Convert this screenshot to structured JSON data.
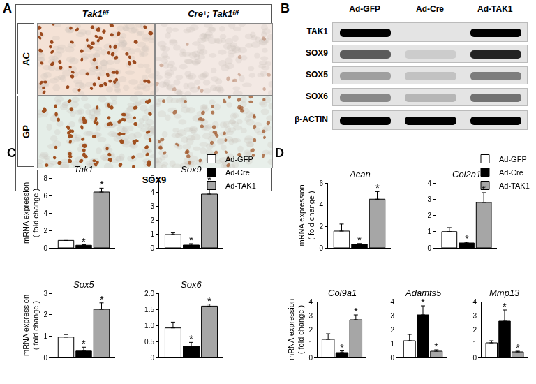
{
  "panel_A": {
    "label": "A",
    "columns": [
      [
        {
          "text": "Tak1"
        },
        {
          "text": "f/f",
          "sup": true
        }
      ],
      [
        {
          "text": "Cre"
        },
        {
          "text": "+",
          "sup": true
        },
        {
          "text": "; Tak1"
        },
        {
          "text": "f/f",
          "sup": true
        }
      ]
    ],
    "rows": [
      "AC",
      "GP"
    ],
    "footer": "SOX9"
  },
  "panel_B": {
    "label": "B",
    "lanes": [
      "Ad-GFP",
      "Ad-Cre",
      "Ad-TAK1"
    ],
    "rows": [
      {
        "label": "TAK1",
        "intensity": [
          1.0,
          0.0,
          1.0
        ]
      },
      {
        "label": "SOX9",
        "intensity": [
          0.6,
          0.1,
          0.85
        ]
      },
      {
        "label": "SOX5",
        "intensity": [
          0.3,
          0.15,
          0.45
        ]
      },
      {
        "label": "SOX6",
        "intensity": [
          0.4,
          0.2,
          0.5
        ]
      },
      {
        "label": "β-ACTIN",
        "intensity": [
          1.0,
          1.0,
          1.0
        ]
      }
    ]
  },
  "chart_data": [
    {
      "panel": "C",
      "type": "bar",
      "title": "Tak1",
      "ylabel": [
        "mRNA expression",
        "( fold change )"
      ],
      "categories": [
        null
      ],
      "tick_labels": "y",
      "ylim": [
        0,
        8
      ],
      "yticks": [
        0,
        2,
        4,
        6,
        8
      ],
      "series": [
        {
          "name": "Ad-GFP",
          "color": "#ffffff",
          "values": [
            0.85
          ],
          "errors": [
            0.15
          ]
        },
        {
          "name": "Ad-Cre",
          "color": "#000000",
          "values": [
            0.3
          ],
          "errors": [
            0.05
          ]
        },
        {
          "name": "Ad-TAK1",
          "color": "#a6a6a6",
          "values": [
            6.4
          ],
          "errors": [
            0.45
          ]
        }
      ],
      "annotations": [
        {
          "text": "*",
          "series": "Ad-Cre"
        },
        {
          "text": "*",
          "series": "Ad-TAK1"
        }
      ]
    },
    {
      "panel": "C",
      "type": "bar",
      "title": "Sox9",
      "categories": [
        null
      ],
      "tick_labels": "y",
      "legend": "upper right",
      "ylim": [
        0,
        5
      ],
      "yticks": [
        0,
        1,
        2,
        3,
        4,
        5
      ],
      "series": [
        {
          "name": "Ad-GFP",
          "color": "#ffffff",
          "values": [
            0.95
          ],
          "errors": [
            0.12
          ]
        },
        {
          "name": "Ad-Cre",
          "color": "#000000",
          "values": [
            0.2
          ],
          "errors": [
            0.1
          ]
        },
        {
          "name": "Ad-TAK1",
          "color": "#a6a6a6",
          "values": [
            3.85
          ],
          "errors": [
            0.75
          ]
        }
      ],
      "annotations": [
        {
          "text": "*",
          "series": "Ad-Cre"
        },
        {
          "text": "*",
          "series": "Ad-TAK1"
        }
      ]
    },
    {
      "panel": "C",
      "type": "bar",
      "title": "Sox5",
      "ylabel": [
        "mRNA expression",
        "( fold change )"
      ],
      "categories": [
        null
      ],
      "tick_labels": "y",
      "ylim": [
        0,
        3
      ],
      "yticks": [
        0,
        1,
        2,
        3
      ],
      "series": [
        {
          "name": "Ad-GFP",
          "color": "#ffffff",
          "values": [
            0.95
          ],
          "errors": [
            0.12
          ]
        },
        {
          "name": "Ad-Cre",
          "color": "#000000",
          "values": [
            0.3
          ],
          "errors": [
            0.18
          ]
        },
        {
          "name": "Ad-TAK1",
          "color": "#a6a6a6",
          "values": [
            2.25
          ],
          "errors": [
            0.3
          ]
        }
      ],
      "annotations": [
        {
          "text": "*",
          "series": "Ad-Cre"
        },
        {
          "text": "*",
          "series": "Ad-TAK1"
        }
      ]
    },
    {
      "panel": "C",
      "type": "bar",
      "title": "Sox6",
      "categories": [
        null
      ],
      "tick_labels": "y",
      "ylim": [
        0,
        2
      ],
      "yticks": [
        0,
        0.5,
        {
          "value": 1,
          "label": "1.0"
        },
        1.5,
        {
          "value": 2,
          "label": "2.0"
        }
      ],
      "series": [
        {
          "name": "Ad-GFP",
          "color": "#ffffff",
          "values": [
            0.92
          ],
          "errors": [
            0.18
          ]
        },
        {
          "name": "Ad-Cre",
          "color": "#000000",
          "values": [
            0.35
          ],
          "errors": [
            0.12
          ]
        },
        {
          "name": "Ad-TAK1",
          "color": "#a6a6a6",
          "values": [
            1.6
          ],
          "errors": [
            0.06
          ]
        }
      ],
      "annotations": [
        {
          "text": "*",
          "series": "Ad-Cre"
        },
        {
          "text": "*",
          "series": "Ad-TAK1"
        }
      ]
    },
    {
      "panel": "D",
      "type": "bar",
      "title": "Acan",
      "ylabel": [
        "mRNA expression",
        "( fold change )"
      ],
      "categories": [
        null
      ],
      "tick_labels": "y",
      "ylim": [
        0,
        6
      ],
      "yticks": [
        0,
        2,
        4,
        6
      ],
      "series": [
        {
          "name": "Ad-GFP",
          "color": "#ffffff",
          "values": [
            1.55
          ],
          "errors": [
            0.65
          ]
        },
        {
          "name": "Ad-Cre",
          "color": "#000000",
          "values": [
            0.35
          ],
          "errors": [
            0.05
          ]
        },
        {
          "name": "Ad-TAK1",
          "color": "#a6a6a6",
          "values": [
            4.5
          ],
          "errors": [
            0.7
          ]
        }
      ],
      "annotations": [
        {
          "text": "*",
          "series": "Ad-Cre"
        },
        {
          "text": "*",
          "series": "Ad-TAK1"
        }
      ]
    },
    {
      "panel": "D",
      "type": "bar",
      "title": "Col2a1",
      "categories": [
        null
      ],
      "tick_labels": "y",
      "legend": "upper right",
      "ylim": [
        0,
        4
      ],
      "yticks": [
        0,
        1,
        2,
        3,
        4
      ],
      "series": [
        {
          "name": "Ad-GFP",
          "color": "#ffffff",
          "values": [
            1.0
          ],
          "errors": [
            0.25
          ]
        },
        {
          "name": "Ad-Cre",
          "color": "#000000",
          "values": [
            0.3
          ],
          "errors": [
            0.05
          ]
        },
        {
          "name": "Ad-TAK1",
          "color": "#a6a6a6",
          "values": [
            2.8
          ],
          "errors": [
            0.6
          ]
        }
      ],
      "annotations": [
        {
          "text": "*",
          "series": "Ad-Cre"
        },
        {
          "text": "*",
          "series": "Ad-TAK1"
        }
      ]
    },
    {
      "panel": "D",
      "type": "bar",
      "title": "Col9a1",
      "ylabel": [
        "mRNA expression",
        "( fold change )"
      ],
      "categories": [
        null
      ],
      "tick_labels": "y",
      "ylim": [
        0,
        4
      ],
      "yticks": [
        0,
        1,
        2,
        3,
        4
      ],
      "series": [
        {
          "name": "Ad-GFP",
          "color": "#ffffff",
          "values": [
            1.3
          ],
          "errors": [
            0.4
          ]
        },
        {
          "name": "Ad-Cre",
          "color": "#000000",
          "values": [
            0.35
          ],
          "errors": [
            0.12
          ]
        },
        {
          "name": "Ad-TAK1",
          "color": "#a6a6a6",
          "values": [
            2.7
          ],
          "errors": [
            0.35
          ]
        }
      ],
      "annotations": [
        {
          "text": "*",
          "series": "Ad-Cre"
        },
        {
          "text": "*",
          "series": "Ad-TAK1"
        }
      ]
    },
    {
      "panel": "D",
      "type": "bar",
      "title": "Adamts5",
      "categories": [
        null
      ],
      "tick_labels": "y",
      "ylim": [
        0,
        4
      ],
      "yticks": [
        0,
        1,
        2,
        3,
        4
      ],
      "series": [
        {
          "name": "Ad-GFP",
          "color": "#ffffff",
          "values": [
            1.2
          ],
          "errors": [
            0.45
          ]
        },
        {
          "name": "Ad-Cre",
          "color": "#000000",
          "values": [
            3.05
          ],
          "errors": [
            0.65
          ]
        },
        {
          "name": "Ad-TAK1",
          "color": "#a6a6a6",
          "values": [
            0.45
          ],
          "errors": [
            0.1
          ]
        }
      ],
      "annotations": [
        {
          "text": "*",
          "series": "Ad-Cre"
        },
        {
          "text": "*",
          "series": "Ad-TAK1"
        }
      ]
    },
    {
      "panel": "D",
      "type": "bar",
      "title": "Mmp13",
      "categories": [
        null
      ],
      "tick_labels": "y",
      "ylim": [
        0,
        4
      ],
      "yticks": [
        0,
        1,
        2,
        3,
        4
      ],
      "series": [
        {
          "name": "Ad-GFP",
          "color": "#ffffff",
          "values": [
            1.05
          ],
          "errors": [
            0.15
          ]
        },
        {
          "name": "Ad-Cre",
          "color": "#000000",
          "values": [
            2.6
          ],
          "errors": [
            0.8
          ]
        },
        {
          "name": "Ad-TAK1",
          "color": "#a6a6a6",
          "values": [
            0.4
          ],
          "errors": [
            0.05
          ]
        }
      ],
      "annotations": [
        {
          "text": "*",
          "series": "Ad-Cre"
        },
        {
          "text": "*",
          "series": "Ad-TAK1"
        }
      ]
    }
  ]
}
